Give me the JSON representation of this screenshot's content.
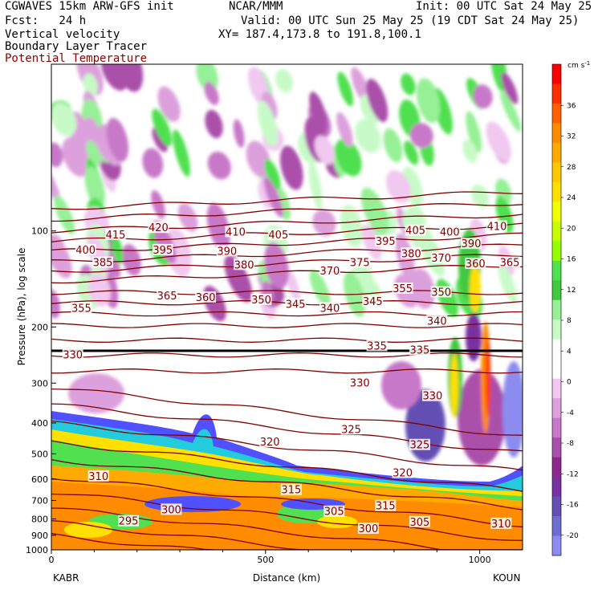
{
  "header": {
    "line1_left": "CGWAVES 15km ARW-GFS init",
    "line1_mid": "NCAR/MMM",
    "line1_right": "Init: 00 UTC Sat 24 May 25",
    "line2_left": "Fcst:   24 h",
    "line2_right": "Valid: 00 UTC Sun 25 May 25 (19 CDT Sat 24 May 25)",
    "line3_left": "Vertical velocity",
    "line3_right": "XY= 187.4,173.8 to 191.8,100.1",
    "line4_left": "Boundary Layer Tracer",
    "line5_left": "Potential Temperature"
  },
  "chart_data": {
    "type": "heatmap",
    "xlabel": "Distance (km)",
    "ylabel": "Pressure (hPa), log scale",
    "x_ticks": [
      "0",
      "500",
      "1000"
    ],
    "y_ticks": [
      "100",
      "200",
      "300",
      "400",
      "500",
      "600",
      "700",
      "800",
      "900",
      "1000"
    ],
    "xlim": [
      0,
      1100
    ],
    "ylim": [
      1000,
      30
    ],
    "y_scale": "log",
    "endpoint_left": "KABR",
    "endpoint_right": "KOUN",
    "colorbar": {
      "unit": "cm s",
      "unit_exp": "-1",
      "labels": [
        "36",
        "32",
        "28",
        "24",
        "20",
        "16",
        "12",
        "8",
        "4",
        "0",
        "-4",
        "-8",
        "-12",
        "-16",
        "-20"
      ],
      "colors": [
        "#ff0000",
        "#ff3000",
        "#ff6000",
        "#ff8c00",
        "#ffaa00",
        "#ffc800",
        "#ffe000",
        "#f0ff00",
        "#c8ff00",
        "#96ff00",
        "#50e050",
        "#40c840",
        "#96f096",
        "#c8fac8",
        "#ffffff",
        "#ffffff",
        "#f0c8f0",
        "#dca0dc",
        "#c878c8",
        "#aa50aa",
        "#8c288c",
        "#7832a0",
        "#6450b4",
        "#6e6ed2",
        "#8c8cf0"
      ]
    },
    "theta_labels": [
      {
        "text": "415",
        "x": 150,
        "p": 103
      },
      {
        "text": "420",
        "x": 250,
        "p": 98
      },
      {
        "text": "410",
        "x": 430,
        "p": 101
      },
      {
        "text": "405",
        "x": 530,
        "p": 103
      },
      {
        "text": "405",
        "x": 850,
        "p": 100
      },
      {
        "text": "400",
        "x": 930,
        "p": 101
      },
      {
        "text": "410",
        "x": 1040,
        "p": 97
      },
      {
        "text": "400",
        "x": 80,
        "p": 115
      },
      {
        "text": "395",
        "x": 260,
        "p": 115
      },
      {
        "text": "390",
        "x": 410,
        "p": 116
      },
      {
        "text": "395",
        "x": 780,
        "p": 108
      },
      {
        "text": "390",
        "x": 980,
        "p": 110
      },
      {
        "text": "385",
        "x": 120,
        "p": 126
      },
      {
        "text": "380",
        "x": 450,
        "p": 128
      },
      {
        "text": "375",
        "x": 720,
        "p": 126
      },
      {
        "text": "380",
        "x": 840,
        "p": 118
      },
      {
        "text": "370",
        "x": 910,
        "p": 122
      },
      {
        "text": "360",
        "x": 990,
        "p": 127
      },
      {
        "text": "365",
        "x": 1070,
        "p": 126
      },
      {
        "text": "370",
        "x": 650,
        "p": 134
      },
      {
        "text": "365",
        "x": 270,
        "p": 160
      },
      {
        "text": "360",
        "x": 360,
        "p": 162
      },
      {
        "text": "355",
        "x": 820,
        "p": 152
      },
      {
        "text": "350",
        "x": 910,
        "p": 156
      },
      {
        "text": "355",
        "x": 70,
        "p": 175
      },
      {
        "text": "350",
        "x": 490,
        "p": 165
      },
      {
        "text": "345",
        "x": 570,
        "p": 170
      },
      {
        "text": "340",
        "x": 650,
        "p": 175
      },
      {
        "text": "345",
        "x": 750,
        "p": 167
      },
      {
        "text": "340",
        "x": 900,
        "p": 192
      },
      {
        "text": "335",
        "x": 760,
        "p": 230
      },
      {
        "text": "335",
        "x": 860,
        "p": 237
      },
      {
        "text": "330",
        "x": 50,
        "p": 245
      },
      {
        "text": "330",
        "x": 720,
        "p": 300
      },
      {
        "text": "330",
        "x": 890,
        "p": 330
      },
      {
        "text": "325",
        "x": 700,
        "p": 420
      },
      {
        "text": "325",
        "x": 860,
        "p": 470
      },
      {
        "text": "320",
        "x": 510,
        "p": 460
      },
      {
        "text": "320",
        "x": 820,
        "p": 575
      },
      {
        "text": "315",
        "x": 560,
        "p": 650
      },
      {
        "text": "315",
        "x": 780,
        "p": 730
      },
      {
        "text": "310",
        "x": 110,
        "p": 590
      },
      {
        "text": "310",
        "x": 1050,
        "p": 830
      },
      {
        "text": "305",
        "x": 660,
        "p": 760
      },
      {
        "text": "305",
        "x": 860,
        "p": 820
      },
      {
        "text": "300",
        "x": 280,
        "p": 750
      },
      {
        "text": "300",
        "x": 740,
        "p": 860
      },
      {
        "text": "295",
        "x": 180,
        "p": 815
      }
    ]
  }
}
